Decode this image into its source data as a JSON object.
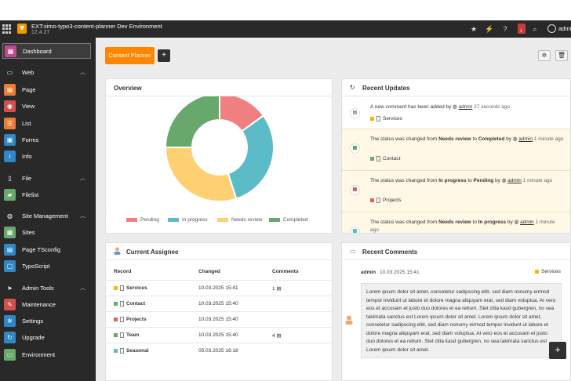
{
  "topbar": {
    "site_name": "EXT:ximo-typo3-content-planner Dev Environment",
    "version": "12.4.27",
    "badge_count": "1",
    "user": "admin"
  },
  "sidebar": {
    "dashboard": "Dashboard",
    "groups": [
      {
        "label": "Web",
        "items": [
          "Page",
          "View",
          "List",
          "Forms",
          "Info"
        ]
      },
      {
        "label": "File",
        "items": [
          "Filelist"
        ]
      },
      {
        "label": "Site Management",
        "items": [
          "Sites",
          "Page TSconfig",
          "TypoScript"
        ]
      },
      {
        "label": "Admin Tools",
        "items": [
          "Maintenance",
          "Settings",
          "Upgrade",
          "Environment"
        ]
      }
    ]
  },
  "toolbar": {
    "planner_tab": "Content Planner",
    "add_label": "+"
  },
  "overview": {
    "title": "Overview",
    "chart_data": {
      "type": "pie",
      "categories": [
        "Pending",
        "In progress",
        "Needs review",
        "Completed"
      ],
      "values": [
        15,
        30,
        30,
        25
      ],
      "colors": [
        "#f08080",
        "#5bbcc8",
        "#ffd073",
        "#69a86c"
      ],
      "legend_position": "bottom"
    }
  },
  "updates": {
    "title": "Recent Updates",
    "items": [
      {
        "pre": "A new ",
        "emph": "comment",
        "mid": " has been added by ",
        "from": "",
        "to": "",
        "user": "admin",
        "time": "27 seconds ago",
        "tag": "Services"
      },
      {
        "pre": "The ",
        "emph": "status",
        "mid": " was changed from ",
        "from": "Needs review",
        "to": "Completed",
        "user": "admin",
        "time": "1 minute ago",
        "tag": "Contact"
      },
      {
        "pre": "The ",
        "emph": "status",
        "mid": " was changed from ",
        "from": "In progress",
        "to": "Pending",
        "user": "admin",
        "time": "1 minute ago",
        "tag": "Projects"
      },
      {
        "pre": "The ",
        "emph": "status",
        "mid": " was changed from ",
        "from": "Needs review",
        "to": "In progress",
        "user": "admin",
        "time": "1 minute ago",
        "tag": ""
      }
    ],
    "to_word": "to",
    "by_word": "by"
  },
  "assignee": {
    "title": "Current Assignee",
    "columns": [
      "Record",
      "Changed",
      "Comments"
    ],
    "rows": [
      {
        "record": "Services",
        "changed": "10.03.2025 15:41",
        "comments": "1",
        "flag": "#f5b800"
      },
      {
        "record": "Contact",
        "changed": "10.03.2025 15:40",
        "comments": "",
        "flag": "#69a86c"
      },
      {
        "record": "Projects",
        "changed": "10.03.2025 15:40",
        "comments": "",
        "flag": "#e06060"
      },
      {
        "record": "Team",
        "changed": "10.03.2025 15:40",
        "comments": "4",
        "flag": "#69a86c"
      },
      {
        "record": "Seasonal",
        "changed": "05.03.2025 16:18",
        "comments": "",
        "flag": "#5bbcc8"
      }
    ]
  },
  "comments": {
    "title": "Recent Comments",
    "author": "admin",
    "date": "10.03.2025 15:41",
    "tag": "Services",
    "text": "Lorem ipsum dolor sit amet, consetetur sadipscing elitr, sed diam nonumy eirmod tempor invidunt ut labore et dolore magna aliquyam erat, sed diam voluptua. At vero eos et accusam et justo duo dolores et ea rebum. Stet clita kasd gubergren, no sea takimata sanctus est Lorem ipsum dolor sit amet. Lorem ipsum dolor sit amet, consetetur sadipscing elitr, sed diam nonumy eirmod tempor invidunt ut labore et dolore magna aliquyam erat, sed diam voluptua. At vero eos et accusam et justo duo dolores et ea rebum. Stet clita kasd gubergren, no sea takimata sanctus est Lorem ipsum dolor sit amet."
  }
}
